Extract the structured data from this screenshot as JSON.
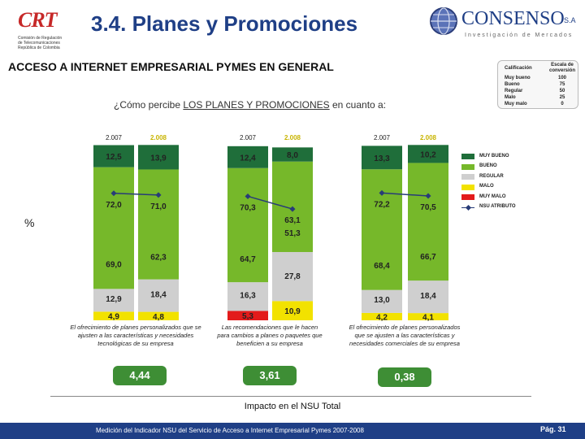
{
  "header": {
    "crt_logo": "CRT",
    "crt_subtitle": "Comisión de Regulación de Telecomunicaciones República de Colombia",
    "title": "3.4. Planes y Promociones",
    "consenso_name": "CONSENSO",
    "consenso_sa": "S.A",
    "consenso_tagline": "Investigación de Mercados"
  },
  "subtitle": "ACCESO A INTERNET EMPRESARIAL PYMES EN GENERAL",
  "question_prefix": "¿Cómo percibe ",
  "question_emph": "LOS PLANES Y PROMOCIONES",
  "question_suffix": " en cuanto a:",
  "percent_symbol": "%",
  "scale_table": {
    "col1": "Calificación",
    "col2": "Escala de conversión",
    "rows": [
      {
        "label": "Muy bueno",
        "value": "100"
      },
      {
        "label": "Bueno",
        "value": "75"
      },
      {
        "label": "Regular",
        "value": "50"
      },
      {
        "label": "Malo",
        "value": "25"
      },
      {
        "label": "Muy malo",
        "value": "0"
      }
    ]
  },
  "colors": {
    "muy_bueno": "#1f6e3a",
    "bueno": "#76b82a",
    "regular": "#cfcfcf",
    "malo": "#f2e200",
    "muy_malo": "#e31b1b",
    "nsu_line": "#283c78",
    "pill": "#3e8e35"
  },
  "chart_data": {
    "type": "bar",
    "stacked": true,
    "categories": [
      "2.007",
      "2.008",
      "2.007",
      "2.008",
      "2.007",
      "2.008"
    ],
    "series": [
      {
        "name": "MUY MALO",
        "values": [
          0,
          0,
          5.3,
          0,
          0,
          0
        ]
      },
      {
        "name": "MALO",
        "values": [
          4.9,
          4.8,
          0,
          10.9,
          4.2,
          4.1
        ]
      },
      {
        "name": "REGULAR",
        "values": [
          12.9,
          18.4,
          16.3,
          27.8,
          13.0,
          18.4
        ]
      },
      {
        "name": "BUENO",
        "values": [
          69.0,
          62.3,
          64.7,
          51.3,
          68.4,
          66.7
        ]
      },
      {
        "name": "MUY BUENO",
        "values": [
          12.5,
          13.9,
          12.4,
          8.0,
          13.3,
          10.2
        ]
      }
    ],
    "labels": {
      "MUY MALO": [
        "",
        "",
        "5,3",
        "",
        "",
        ""
      ],
      "MALO": [
        "4,9",
        "4,8",
        "",
        "10,9",
        "4,2",
        "4,1"
      ],
      "REGULAR": [
        "12,9",
        "18,4",
        "16,3",
        "27,8",
        "13,0",
        "18,4"
      ],
      "BUENO": [
        "69,0",
        "62,3",
        "64,7",
        "51,3",
        "68,4",
        "66,7"
      ],
      "MUY BUENO": [
        "12,5",
        "13,9",
        "12,4",
        "8,0",
        "13,3",
        "10,2"
      ]
    },
    "nsu": {
      "name": "NSU ATRIBUTO",
      "values": [
        72.0,
        71.0,
        70.3,
        63.1,
        72.2,
        70.5
      ],
      "labels": [
        "72,0",
        "71,0",
        "70,3",
        "63,1",
        "72,2",
        "70,5"
      ]
    },
    "groups": [
      {
        "description": "El ofrecimiento de planes personalizados que se ajusten a las características y necesidades tecnológicas de su empresa",
        "impact": "4,44"
      },
      {
        "description": "Las recomendaciones que le hacen para cambios a planes o paquetes que beneficien a su empresa",
        "impact": "3,61"
      },
      {
        "description": "El ofrecimiento de planes personalizados que se ajusten a las características y necesidades comerciales de su empresa",
        "impact": "0,38"
      }
    ],
    "legend": [
      "MUY BUENO",
      "BUENO",
      "REGULAR",
      "MALO",
      "MUY MALO",
      "NSU ATRIBUTO"
    ],
    "ylim": [
      0,
      100
    ]
  },
  "impact_title": "Impacto en el NSU Total",
  "footer": {
    "text": "Medición del Indicador NSU del Servicio de Acceso a Internet Empresarial Pymes 2007-2008",
    "page": "Pág. 31"
  }
}
